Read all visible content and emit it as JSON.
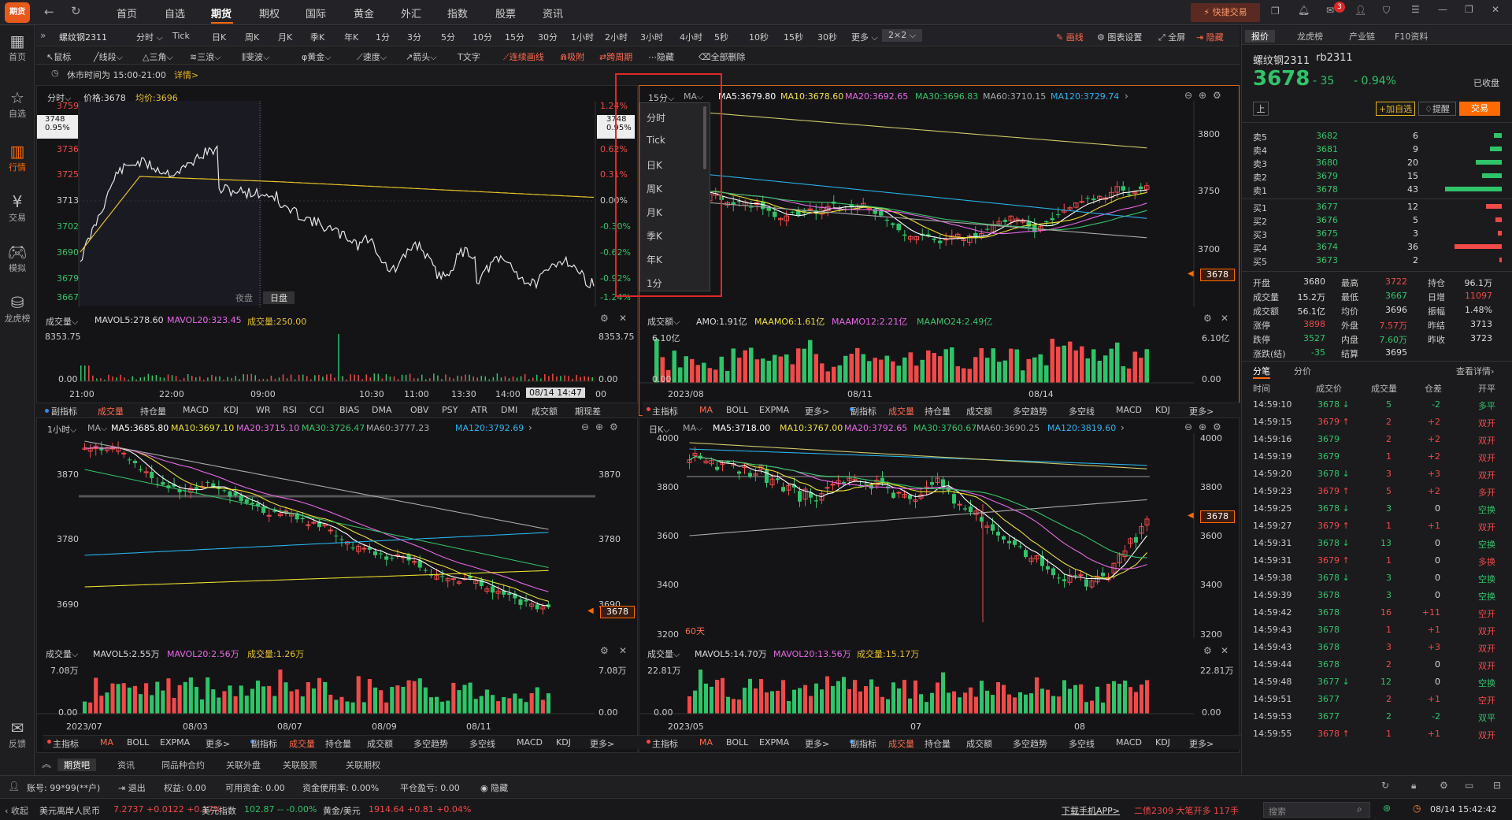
{
  "app": {
    "logo": "期货"
  },
  "topnav": {
    "items": [
      "首页",
      "自选",
      "期货",
      "期权",
      "国际",
      "黄金",
      "外汇",
      "指数",
      "股票",
      "资讯"
    ],
    "active": "期货",
    "quick_trade": "快捷交易",
    "msg_badge": "3"
  },
  "leftbar": [
    {
      "icon": "grid-icon",
      "label": "首页"
    },
    {
      "icon": "star-icon",
      "label": "自选"
    },
    {
      "icon": "chart-icon",
      "label": "行情"
    },
    {
      "icon": "trade-icon",
      "label": "交易"
    },
    {
      "icon": "game-icon",
      "label": "模拟"
    },
    {
      "icon": "db-icon",
      "label": "龙虎榜"
    },
    {
      "icon": "feedback-icon",
      "label": "反馈"
    }
  ],
  "periodbar": {
    "symbol": "螺纹钢2311",
    "items": [
      "分时",
      "Tick",
      "日K",
      "周K",
      "月K",
      "季K",
      "年K",
      "1分",
      "3分",
      "5分",
      "10分",
      "15分",
      "30分",
      "1小时",
      "2小时",
      "3小时",
      "4小时",
      "5秒",
      "10秒",
      "15秒",
      "30秒",
      "更多",
      "2×2"
    ],
    "draw": "画线",
    "chart_settings": "图表设置",
    "fullscreen": "全屏",
    "hide": "隐藏"
  },
  "drawbar": {
    "items": [
      "鼠标",
      "线段",
      "三角",
      "三浪",
      "斐波",
      "黄金",
      "速度",
      "箭头",
      "文字",
      "连续画线",
      "吸附",
      "跨周期",
      "隐藏",
      "全部删除"
    ]
  },
  "session": {
    "text": "休市时间为 15:00-21:00",
    "link": "详情"
  },
  "rightpanel": {
    "tabs": [
      "报价",
      "龙虎榜",
      "产业链",
      "F10资料"
    ],
    "name": "螺纹钢2311",
    "code": "rb2311",
    "price": "3678",
    "change": "- 35",
    "pct": "- 0.94%",
    "status": "已收盘",
    "btn_up": "上",
    "btn_fav": "加自选",
    "btn_alert": "提醒",
    "btn_trade": "交易",
    "asks": [
      {
        "l": "卖5",
        "p": "3682",
        "v": "6",
        "w": 10
      },
      {
        "l": "卖4",
        "p": "3681",
        "v": "9",
        "w": 15
      },
      {
        "l": "卖3",
        "p": "3680",
        "v": "20",
        "w": 33
      },
      {
        "l": "卖2",
        "p": "3679",
        "v": "15",
        "w": 25
      },
      {
        "l": "卖1",
        "p": "3678",
        "v": "43",
        "w": 72
      }
    ],
    "bids": [
      {
        "l": "买1",
        "p": "3677",
        "v": "12",
        "w": 20
      },
      {
        "l": "买2",
        "p": "3676",
        "v": "5",
        "w": 8
      },
      {
        "l": "买3",
        "p": "3675",
        "v": "3",
        "w": 5
      },
      {
        "l": "买4",
        "p": "3674",
        "v": "36",
        "w": 60
      },
      {
        "l": "买5",
        "p": "3673",
        "v": "2",
        "w": 3
      }
    ],
    "stats": [
      [
        "开盘",
        "3680",
        "最高",
        "3722",
        "持仓",
        "96.1万"
      ],
      [
        "成交量",
        "15.2万",
        "最低",
        "3667",
        "日增",
        "11097"
      ],
      [
        "成交额",
        "56.1亿",
        "均价",
        "3696",
        "振幅",
        "1.48%"
      ],
      [
        "涨停",
        "3898",
        "外盘",
        "7.57万",
        "昨结",
        "3713"
      ],
      [
        "跌停",
        "3527",
        "内盘",
        "7.60万",
        "昨收",
        "3723"
      ],
      [
        "涨跌(结)",
        "-35",
        "结算",
        "3695",
        "",
        ""
      ]
    ],
    "tick_tabs": [
      "分笔",
      "分价"
    ],
    "detail": "查看详情",
    "tick_head": [
      "时间",
      "成交价",
      "成交量",
      "仓差",
      "开平"
    ],
    "ticks": [
      [
        "14:59:10",
        "3678",
        "↓",
        "5",
        "-2",
        "多平"
      ],
      [
        "14:59:15",
        "3679",
        "↑",
        "2",
        "+2",
        "双开"
      ],
      [
        "14:59:16",
        "3679",
        "",
        "2",
        "+2",
        "双开"
      ],
      [
        "14:59:19",
        "3679",
        "",
        "1",
        "+2",
        "双开"
      ],
      [
        "14:59:20",
        "3678",
        "↓",
        "3",
        "+3",
        "双开"
      ],
      [
        "14:59:23",
        "3679",
        "↑",
        "5",
        "+2",
        "多开"
      ],
      [
        "14:59:25",
        "3678",
        "↓",
        "3",
        "0",
        "空换"
      ],
      [
        "14:59:27",
        "3679",
        "↑",
        "1",
        "+1",
        "双开"
      ],
      [
        "14:59:31",
        "3678",
        "↓",
        "13",
        "0",
        "空换"
      ],
      [
        "14:59:31",
        "3679",
        "↑",
        "1",
        "0",
        "多换"
      ],
      [
        "14:59:38",
        "3678",
        "↓",
        "3",
        "0",
        "空换"
      ],
      [
        "14:59:39",
        "3678",
        "",
        "3",
        "0",
        "空换"
      ],
      [
        "14:59:42",
        "3678",
        "",
        "16",
        "+11",
        "空开"
      ],
      [
        "14:59:43",
        "3678",
        "",
        "1",
        "+1",
        "双开"
      ],
      [
        "14:59:43",
        "3678",
        "",
        "3",
        "+3",
        "双开"
      ],
      [
        "14:59:44",
        "3678",
        "",
        "2",
        "0",
        "双开"
      ],
      [
        "14:59:48",
        "3677",
        "↓",
        "12",
        "0",
        "空换"
      ],
      [
        "14:59:51",
        "3677",
        "",
        "2",
        "+1",
        "空开"
      ],
      [
        "14:59:53",
        "3677",
        "",
        "2",
        "-2",
        "双平"
      ],
      [
        "14:59:55",
        "3678",
        "↑",
        "1",
        "+1",
        "双开"
      ]
    ]
  },
  "p1": {
    "hdr": [
      "分时",
      "价格:3678",
      "均价:3696"
    ],
    "price_axis": [
      "3759",
      "3748",
      "3736",
      "3725",
      "3713",
      "3702",
      "3690",
      "3679",
      "3667"
    ],
    "pct_axis": [
      "1.24%",
      "0.95%",
      "0.62%",
      "0.31%",
      "0.00%",
      "-0.30%",
      "-0.62%",
      "-0.92%",
      "-1.24%"
    ],
    "cross_left": "3748",
    "cross_left2": "0.95%",
    "cross_right": "3748",
    "cross_right2": "0.95%",
    "night": "夜盘",
    "day": "日盘",
    "vol_hdr": [
      "成交量",
      "MAVOL5:278.60",
      "MAVOL20:323.45",
      "成交量:250.00"
    ],
    "vol_axis": [
      "8353.75",
      "0.00"
    ],
    "times": [
      "21:00",
      "22:00",
      "09:00",
      "10:30",
      "11:00",
      "13:30",
      "14:00",
      "08/14 14:47",
      "00"
    ],
    "ind": [
      "副指标",
      "成交量",
      "持仓量",
      "MACD",
      "KDJ",
      "WR",
      "RSI",
      "CCI",
      "BIAS",
      "DMA",
      "OBV",
      "PSY",
      "ATR",
      "DMI",
      "成交额",
      "期现差"
    ]
  },
  "p2": {
    "hdr": [
      "15分",
      "MA",
      "MA5:3679.80",
      "MA10:3678.60",
      "MA20:3692.65",
      "MA30:3696.83",
      "MA60:3710.15",
      "MA120:3729.74"
    ],
    "axis": [
      "3800",
      "3750",
      "3700"
    ],
    "price_tag": "3678",
    "vol_hdr": [
      "成交额",
      "AMO:1.91亿",
      "MAAMO6:1.61亿",
      "MAAMO12:2.21亿",
      "MAAMO24:2.49亿"
    ],
    "vol_axis": [
      "6.10亿",
      "0.00"
    ],
    "dates": [
      "2023/08",
      "08/11",
      "08/14"
    ],
    "ind": [
      "主指标",
      "MA",
      "BOLL",
      "EXPMA",
      "更多>",
      "副指标",
      "成交量",
      "持仓量",
      "成交额",
      "多空趋势",
      "多空线",
      "MACD",
      "KDJ",
      "更多>"
    ]
  },
  "p3": {
    "hdr": [
      "1小时",
      "MA",
      "MA5:3685.80",
      "MA10:3697.10",
      "MA20:3715.10",
      "MA30:3726.47",
      "MA60:3777.23",
      "MA120:3792.69"
    ],
    "axis": [
      "3870",
      "3780",
      "3690"
    ],
    "price_tag": "3678",
    "vol_hdr": [
      "成交量",
      "MAVOL5:2.55万",
      "MAVOL20:2.56万",
      "成交量:1.26万"
    ],
    "vol_axis": [
      "7.08万",
      "0.00"
    ],
    "dates": [
      "2023/07",
      "08/03",
      "08/07",
      "08/09",
      "08/11"
    ],
    "ind": [
      "主指标",
      "MA",
      "BOLL",
      "EXPMA",
      "更多>",
      "副指标",
      "成交量",
      "持仓量",
      "成交额",
      "多空趋势",
      "多空线",
      "MACD",
      "KDJ",
      "更多>"
    ]
  },
  "p4": {
    "hdr": [
      "日K",
      "MA",
      "MA5:3718.00",
      "MA10:3767.00",
      "MA20:3792.65",
      "MA30:3760.67",
      "MA60:3690.25",
      "MA120:3819.60"
    ],
    "axis": [
      "4000",
      "3800",
      "3600",
      "3400",
      "3200"
    ],
    "price_tag": "3678",
    "days": "60天",
    "vol_hdr": [
      "成交量",
      "MAVOL5:14.70万",
      "MAVOL20:13.56万",
      "成交量:15.17万"
    ],
    "vol_axis": [
      "22.81万",
      "0.00"
    ],
    "dates": [
      "2023/05",
      "07",
      "08"
    ],
    "ind": [
      "主指标",
      "MA",
      "BOLL",
      "EXPMA",
      "更多>",
      "副指标",
      "成交量",
      "持仓量",
      "成交额",
      "多空趋势",
      "多空线",
      "MACD",
      "KDJ",
      "更多>"
    ]
  },
  "dropdown": [
    "分时",
    "Tick",
    "日K",
    "周K",
    "月K",
    "季K",
    "年K",
    "1分"
  ],
  "tabbar": [
    "期货吧",
    "资讯",
    "同品种合约",
    "关联外盘",
    "关联股票",
    "关联期权"
  ],
  "bottombar": {
    "account": "账号: 99*99(**户)",
    "logout": "退出",
    "equity": "权益: 0.00",
    "avail": "可用资金: 0.00",
    "margin": "资金使用率: 0.00%",
    "pnl": "平仓盈亏: 0.00",
    "hide": "隐藏"
  },
  "statusbar": {
    "collapse": "收起",
    "items": [
      {
        "n": "美元离岸人民币",
        "v": "7.2737 +0.0122 +0.17%"
      },
      {
        "n": "美元指数",
        "v": "102.87 -- -0.00%"
      },
      {
        "n": "黄金/美元",
        "v": "1914.64 +0.81 +0.04%"
      }
    ],
    "app": "下载手机APP>",
    "alert": "二债2309 大笔开多 117手",
    "search": "搜索",
    "time": "08/14 15:42:42"
  },
  "colors": {
    "up": "#f24949",
    "down": "#2fc46a",
    "accent": "#ff6a00",
    "ma5": "#ffffff",
    "ma10": "#f0e130",
    "ma20": "#e868e8",
    "ma30": "#36c46a",
    "ma60": "#aaaaaa",
    "ma120": "#28b4ee"
  }
}
